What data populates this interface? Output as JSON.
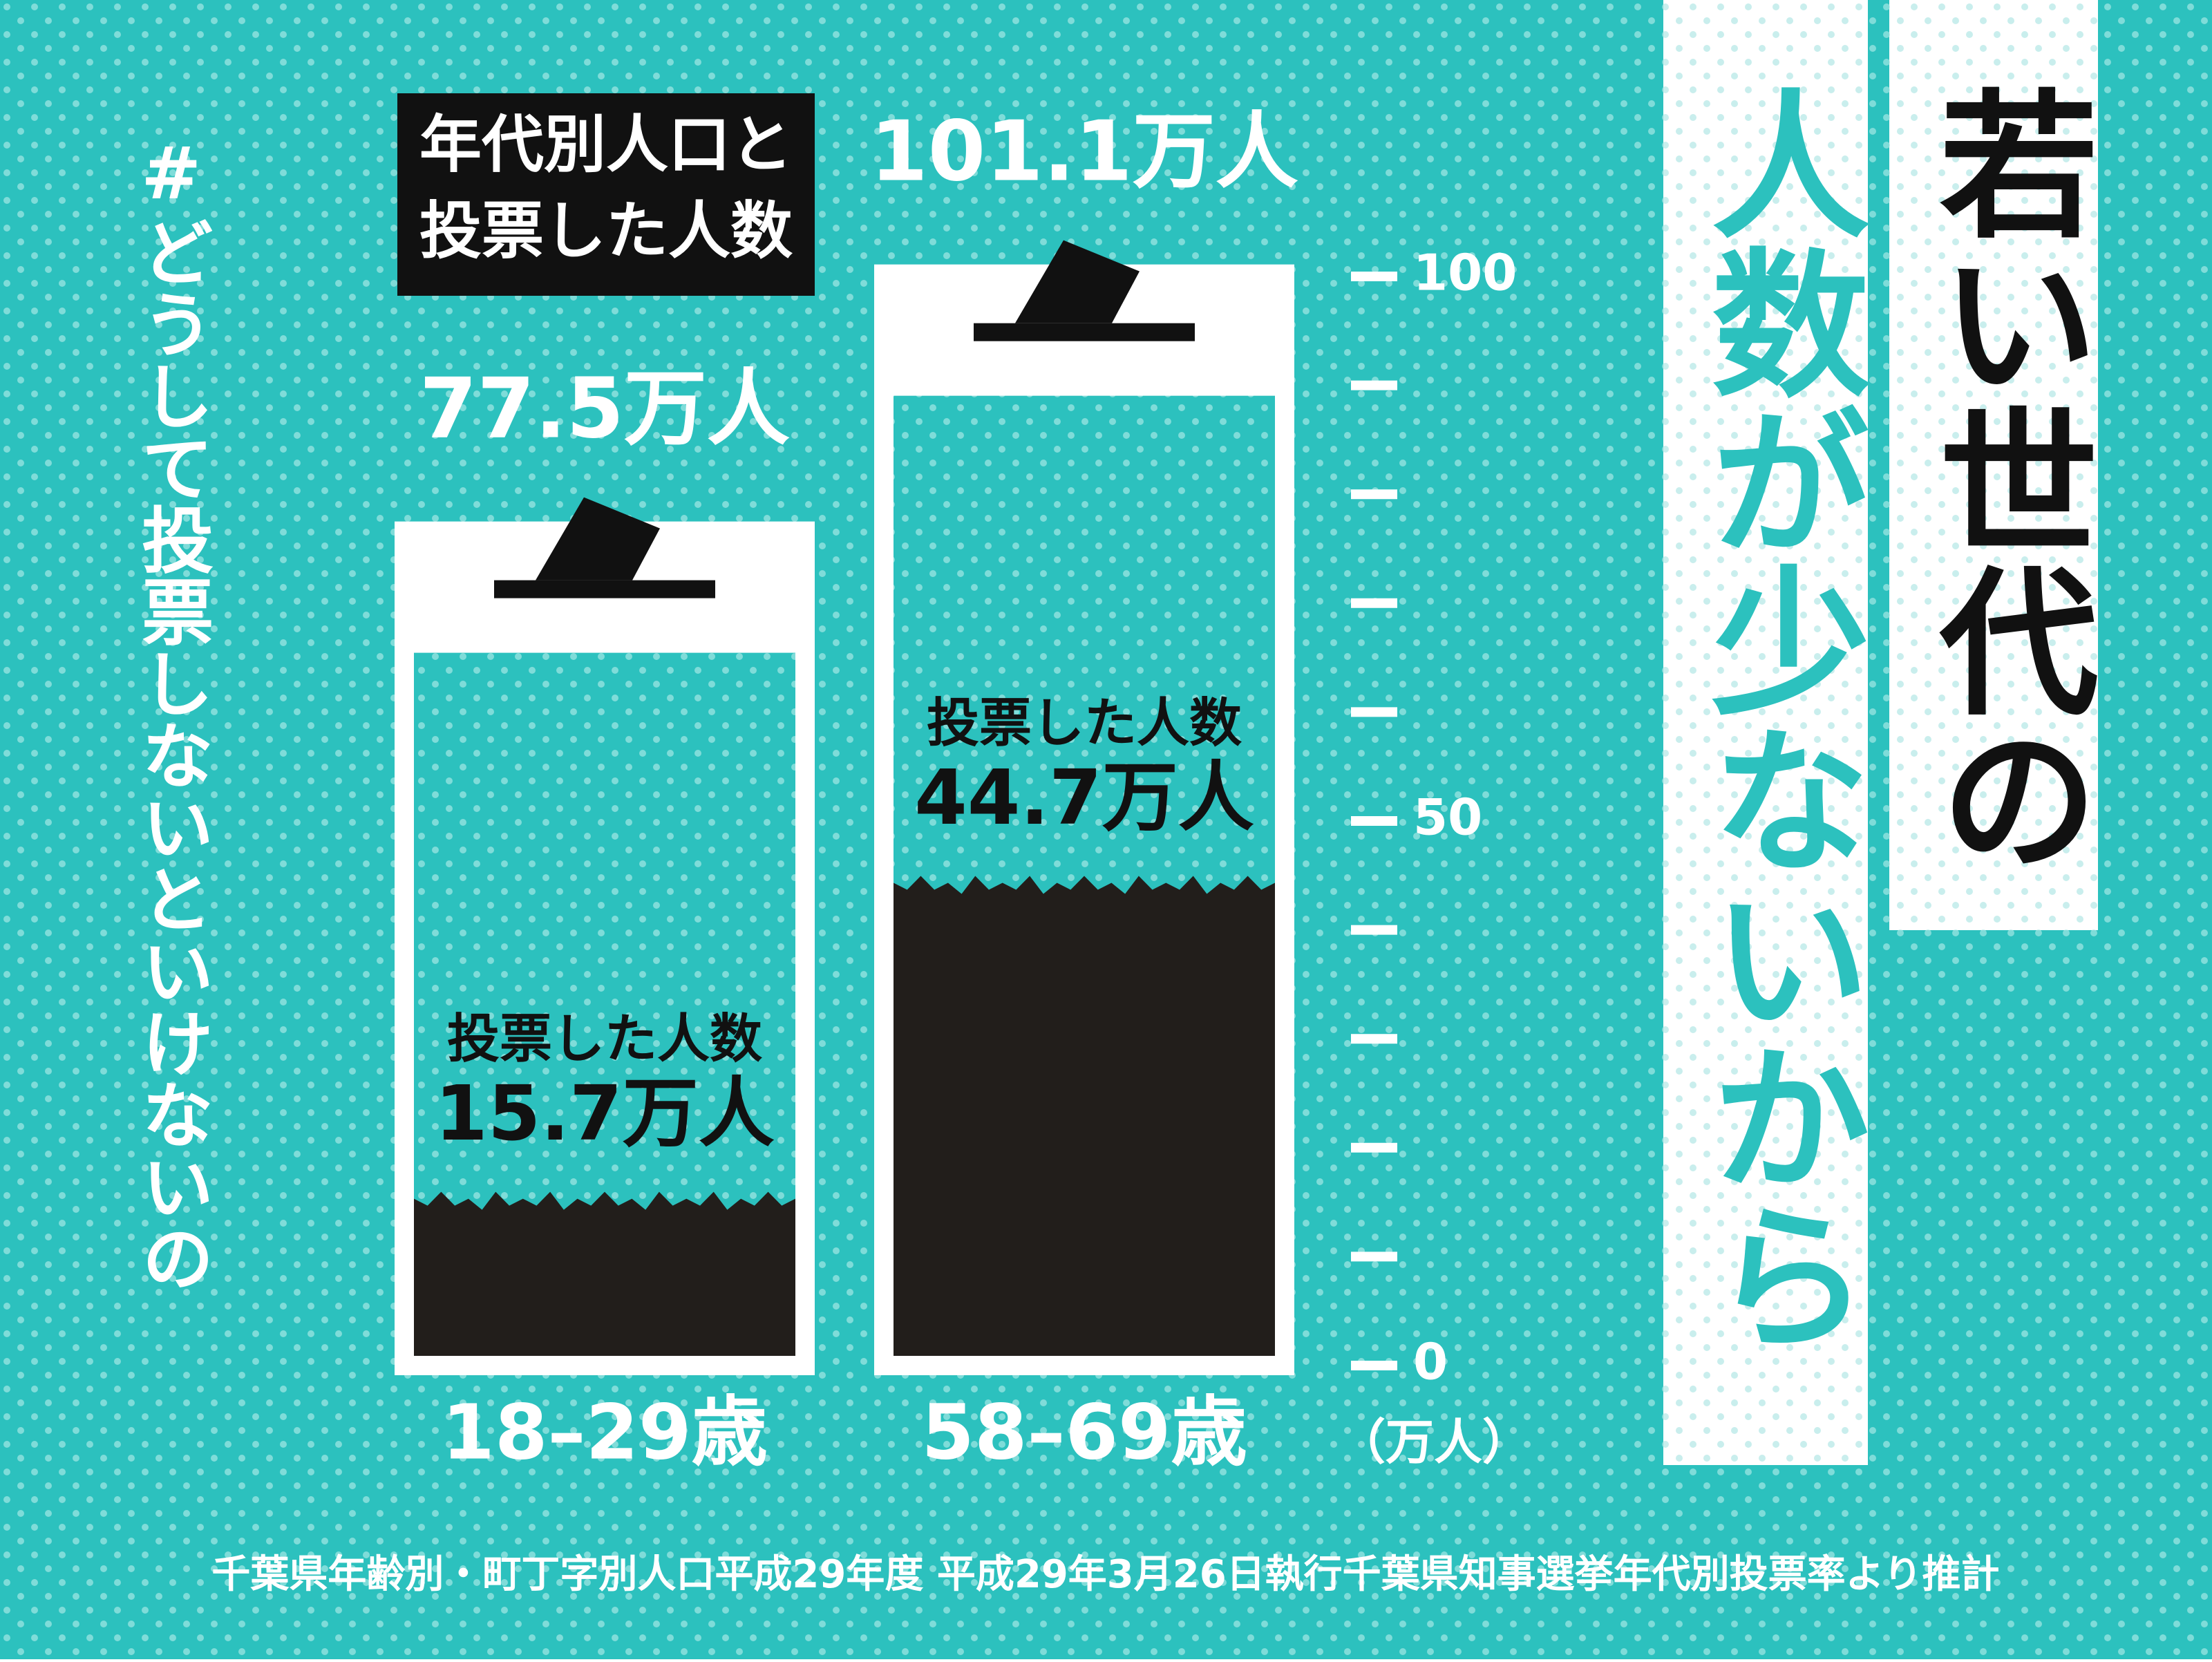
{
  "chart_data": {
    "type": "ballot-box",
    "title": [
      "年代別人口と",
      "投票した人数"
    ],
    "categories": [
      "18–29歳",
      "58–69歳"
    ],
    "series": [
      {
        "color": "#ffffff",
        "values": [
          77.5,
          101.1
        ],
        "value_labels": [
          "77.5万人",
          "101.1万人"
        ]
      },
      {
        "name": "投票した人数",
        "color": "#221e1b",
        "values": [
          15.7,
          44.7
        ],
        "value_labels": [
          "15.7万人",
          "44.7万人"
        ]
      }
    ],
    "ylim": [
      0,
      100
    ],
    "yticks": [
      0,
      50,
      100
    ],
    "minor_yticks": [
      10,
      20,
      30,
      40,
      60,
      70,
      80,
      90
    ],
    "y_unit": "（万人）"
  },
  "headline": [
    "若い世代の",
    "人数が少ないから"
  ],
  "hashtag": "#どうして投票しないといけないの",
  "source": "千葉県年齢別・町丁字別人口平成29年度 平成29年3月26日執行千葉県知事選挙年代別投票率より推計"
}
